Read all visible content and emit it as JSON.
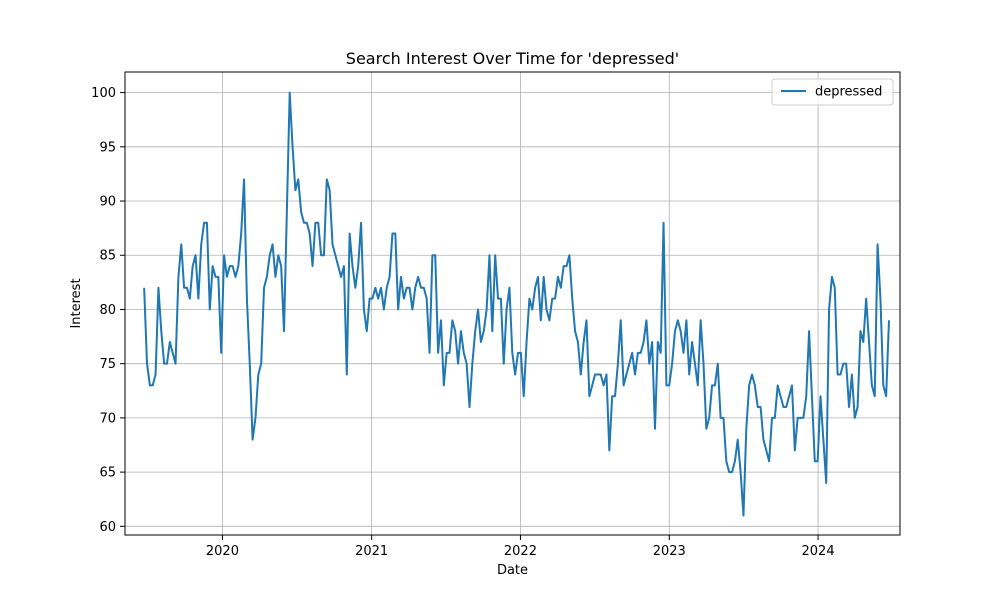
{
  "chart_data": {
    "type": "line",
    "title": "Search Interest Over Time for 'depressed'",
    "xlabel": "Date",
    "ylabel": "Interest",
    "xlim": [
      "2019-05-07",
      "2024-07-20"
    ],
    "ylim": [
      59.2,
      101.9
    ],
    "x_ticks": [
      {
        "value": "2020-01-01",
        "label": "2020"
      },
      {
        "value": "2021-01-01",
        "label": "2021"
      },
      {
        "value": "2022-01-01",
        "label": "2022"
      },
      {
        "value": "2023-01-01",
        "label": "2023"
      },
      {
        "value": "2024-01-01",
        "label": "2024"
      }
    ],
    "y_ticks": [
      60,
      65,
      70,
      75,
      80,
      85,
      90,
      95,
      100
    ],
    "grid": true,
    "legend": "top-right",
    "series": [
      {
        "name": "depressed",
        "color": "#1f77b4",
        "start": "2019-06-23",
        "frequency": "weekly",
        "values": [
          82,
          75,
          73,
          73,
          74,
          82,
          78,
          75,
          75,
          77,
          76,
          75,
          83,
          86,
          82,
          82,
          81,
          84,
          85,
          81,
          86,
          88,
          88,
          80,
          84,
          83,
          83,
          76,
          85,
          83,
          84,
          84,
          83,
          84,
          87,
          92,
          81,
          75,
          68,
          70,
          74,
          75,
          82,
          83,
          85,
          86,
          83,
          85,
          84,
          78,
          89,
          100,
          95,
          91,
          92,
          89,
          88,
          88,
          87,
          84,
          88,
          88,
          85,
          85,
          92,
          91,
          86,
          85,
          84,
          83,
          84,
          74,
          87,
          84,
          82,
          84,
          88,
          80,
          78,
          81,
          81,
          82,
          81,
          82,
          80,
          82,
          83,
          87,
          87,
          80,
          83,
          81,
          82,
          82,
          80,
          82,
          83,
          82,
          82,
          81,
          76,
          85,
          85,
          76,
          79,
          73,
          76,
          76,
          79,
          78,
          75,
          78,
          76,
          75,
          71,
          75,
          78,
          80,
          77,
          78,
          80,
          85,
          78,
          85,
          81,
          81,
          75,
          80,
          82,
          76,
          74,
          76,
          76,
          72,
          77,
          81,
          80,
          82,
          83,
          79,
          83,
          80,
          79,
          81,
          81,
          83,
          82,
          84,
          84,
          85,
          81,
          78,
          77,
          74,
          77,
          79,
          72,
          73,
          74,
          74,
          74,
          73,
          74,
          67,
          72,
          72,
          75,
          79,
          73,
          74,
          75,
          76,
          74,
          76,
          76,
          77,
          79,
          75,
          77,
          69,
          77,
          76,
          88,
          73,
          73,
          75,
          78,
          79,
          78,
          76,
          79,
          74,
          77,
          75,
          73,
          79,
          75,
          69,
          70,
          73,
          73,
          75,
          70,
          70,
          66,
          65,
          65,
          66,
          68,
          65,
          61,
          69,
          73,
          74,
          73,
          71,
          71,
          68,
          67,
          66,
          70,
          70,
          73,
          72,
          71,
          71,
          72,
          73,
          67,
          70,
          70,
          70,
          72,
          78,
          72,
          66,
          66,
          72,
          68,
          64,
          80,
          83,
          82,
          74,
          74,
          75,
          75,
          71,
          74,
          70,
          71,
          78,
          77,
          81,
          77,
          73,
          72,
          86,
          81,
          73,
          72,
          79
        ]
      }
    ]
  }
}
